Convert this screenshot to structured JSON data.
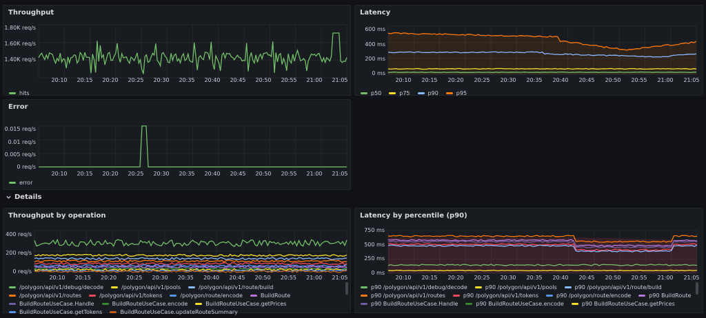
{
  "panels": {
    "throughput": {
      "title": "Throughput",
      "yticks": [
        "1.80K req/s",
        "1.60K req/s",
        "1.40K req/s"
      ],
      "legend": [
        {
          "name": "hits",
          "color": "#73bf69"
        }
      ]
    },
    "latency": {
      "title": "Latency",
      "yticks": [
        "600 ms",
        "400 ms",
        "200 ms",
        "0 ms"
      ],
      "legend": [
        {
          "name": "p50",
          "color": "#73bf69"
        },
        {
          "name": "p75",
          "color": "#fade2a"
        },
        {
          "name": "p90",
          "color": "#8ab8ff"
        },
        {
          "name": "p95",
          "color": "#ff780a"
        }
      ]
    },
    "error": {
      "title": "Error",
      "yticks": [
        "0.015 req/s",
        "0.01 req/s",
        "0.005 req/s",
        "0 req/s"
      ],
      "legend": [
        {
          "name": "error",
          "color": "#73bf69"
        }
      ]
    },
    "throughput_by_op": {
      "title": "Throughput by operation",
      "yticks": [
        "400 req/s",
        "200 req/s",
        "0 req/s"
      ],
      "legend": [
        {
          "name": "/polygon/api/v1/debug/decode",
          "color": "#73bf69"
        },
        {
          "name": "/polygon/api/v1/pools",
          "color": "#fade2a"
        },
        {
          "name": "/polygon/api/v1/route/build",
          "color": "#8ab8ff"
        },
        {
          "name": "/polygon/api/v1/routes",
          "color": "#ff780a"
        },
        {
          "name": "/polygon/api/v1/tokens",
          "color": "#f2495c"
        },
        {
          "name": "/polygon/route/encode",
          "color": "#5794f2"
        },
        {
          "name": "BuildRoute",
          "color": "#b877d9"
        },
        {
          "name": "BuildRouteUseCase.Handle",
          "color": "#705da0"
        },
        {
          "name": "BuildRouteUseCase.encode",
          "color": "#37872d"
        },
        {
          "name": "BuildRouteUseCase.getPrices",
          "color": "#fade2a"
        },
        {
          "name": "BuildRouteUseCase.getTokens",
          "color": "#5794f2"
        },
        {
          "name": "BuildRouteUseCase.updateRouteSummary",
          "color": "#c15c17"
        }
      ]
    },
    "latency_p90": {
      "title": "Latency by percentile (p90)",
      "yticks": [
        "750 ms",
        "500 ms",
        "250 ms",
        "0 ms"
      ],
      "legend": [
        {
          "name": "p90 /polygon/api/v1/debug/decode",
          "color": "#73bf69"
        },
        {
          "name": "p90 /polygon/api/v1/pools",
          "color": "#fade2a"
        },
        {
          "name": "p90 /polygon/api/v1/route/build",
          "color": "#8ab8ff"
        },
        {
          "name": "p90 /polygon/api/v1/routes",
          "color": "#ff780a"
        },
        {
          "name": "p90 /polygon/api/v1/tokens",
          "color": "#f2495c"
        },
        {
          "name": "p90 /polygon/route/encode",
          "color": "#5794f2"
        },
        {
          "name": "p90 BuildRoute",
          "color": "#b877d9"
        },
        {
          "name": "p90 BuildRouteUseCase.Handle",
          "color": "#705da0"
        },
        {
          "name": "p90 BuildRouteUseCase.encode",
          "color": "#37872d"
        },
        {
          "name": "p90 BuildRouteUseCase.getPrices",
          "color": "#fade2a"
        }
      ]
    }
  },
  "xticks": [
    "20:10",
    "20:15",
    "20:20",
    "20:25",
    "20:30",
    "20:35",
    "20:40",
    "20:45",
    "20:50",
    "20:55",
    "21:00",
    "21:05"
  ],
  "row": {
    "title": "Details",
    "chevron": "chevron-down-icon"
  }
}
